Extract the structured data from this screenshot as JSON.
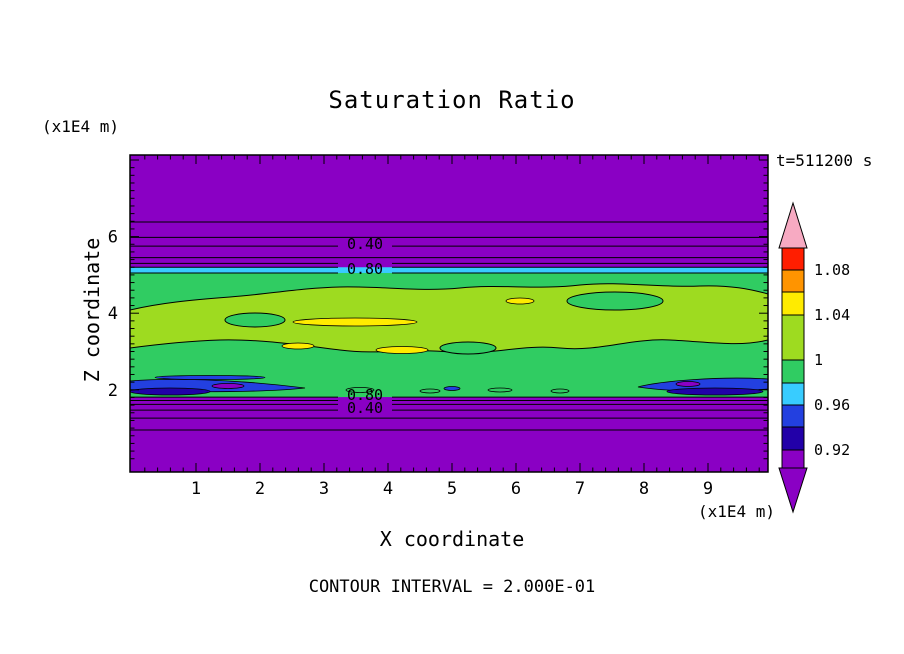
{
  "title": "Saturation Ratio",
  "labels": {
    "time": "t=511200 s",
    "z_axis": "Z coordinate",
    "x_axis": "X coordinate",
    "z_unit": "(x1E4 m)",
    "x_unit": "(x1E4 m)",
    "contour_interval": "CONTOUR INTERVAL = 2.000E-01"
  },
  "axes": {
    "x_ticks": [
      "1",
      "2",
      "3",
      "4",
      "5",
      "6",
      "7",
      "8",
      "9"
    ],
    "z_ticks": [
      "2",
      "4",
      "6"
    ]
  },
  "contour_labels": {
    "upper_040": "0.40",
    "upper_080": "0.80",
    "lower_080": "0.80",
    "lower_040": "0.40"
  },
  "colorbar": {
    "labels": [
      "1.08",
      "1.04",
      "1",
      "0.96",
      "0.92"
    ],
    "colors_top_to_bottom": [
      "pink",
      "red",
      "orange",
      "yellow",
      "yellow_green",
      "green",
      "cyan",
      "blue",
      "navy",
      "purple"
    ]
  },
  "palette": {
    "pink": "#F7AAC2",
    "red": "#FF1E00",
    "orange": "#FF9400",
    "yellow": "#FFEB00",
    "yellow_green": "#9EDB20",
    "green": "#30CC62",
    "cyan": "#38CCFF",
    "blue": "#2340E0",
    "navy": "#2200A8",
    "purple": "#8A00C4",
    "line": "#000000",
    "background": "#FFFFFF"
  },
  "chart_data": {
    "type": "heatmap",
    "subtype": "filled_contour",
    "title": "Saturation Ratio",
    "xlabel": "X coordinate (x1E4 m)",
    "ylabel": "Z coordinate (x1E4 m)",
    "time_annotation": "t=511200 s",
    "contour_interval_text": "CONTOUR INTERVAL = 2.000E-01",
    "contour_interval_value": 0.2,
    "x_ticks": [
      1,
      2,
      3,
      4,
      5,
      6,
      7,
      8,
      9
    ],
    "z_ticks": [
      2,
      4,
      6
    ],
    "x_range": [
      0,
      9.95
    ],
    "z_range": [
      0,
      8.1
    ],
    "colorbar_boundary_values": [
      1.08,
      1.04,
      1.0,
      0.96,
      0.92
    ],
    "labeled_contour_values": [
      0.4,
      0.8
    ],
    "contour_line_z_upper": [
      6.38,
      5.98,
      5.75,
      5.45,
      5.3
    ],
    "contour_line_z_upper_labels": [
      null,
      null,
      "0.40",
      null,
      null
    ],
    "contour_line_z_lower": [
      1.72,
      1.62,
      1.47,
      1.26,
      0.95
    ],
    "contour_line_z_lower_labels": [
      null,
      null,
      "0.40",
      null,
      null
    ],
    "band_080_z_upper": 5.1,
    "band_080_z_lower": 1.81,
    "regions": [
      {
        "name": "upper dry region",
        "z_from": 5.2,
        "z_to": 8.1,
        "saturation": "< 0.4",
        "color": "purple"
      },
      {
        "name": "cyan moist layer",
        "z_from": 5.05,
        "z_to": 5.2,
        "saturation": "~0.92-0.96",
        "color": "cyan"
      },
      {
        "name": "near-saturated band",
        "z_from": 1.81,
        "z_to": 5.05,
        "saturation": "~0.96-1.04",
        "color": "green and yellow_green with thin yellow streaks near z~3-3.5"
      },
      {
        "name": "dry patches at band base",
        "z_from": 1.8,
        "z_to": 2.2,
        "saturation": "~0.88-0.96",
        "color": "blue, navy and purple patches at x~0-3 and x~8-10"
      },
      {
        "name": "lower dry region",
        "z_from": 0,
        "z_to": 1.6,
        "saturation": "< 0.4",
        "color": "purple"
      }
    ]
  }
}
